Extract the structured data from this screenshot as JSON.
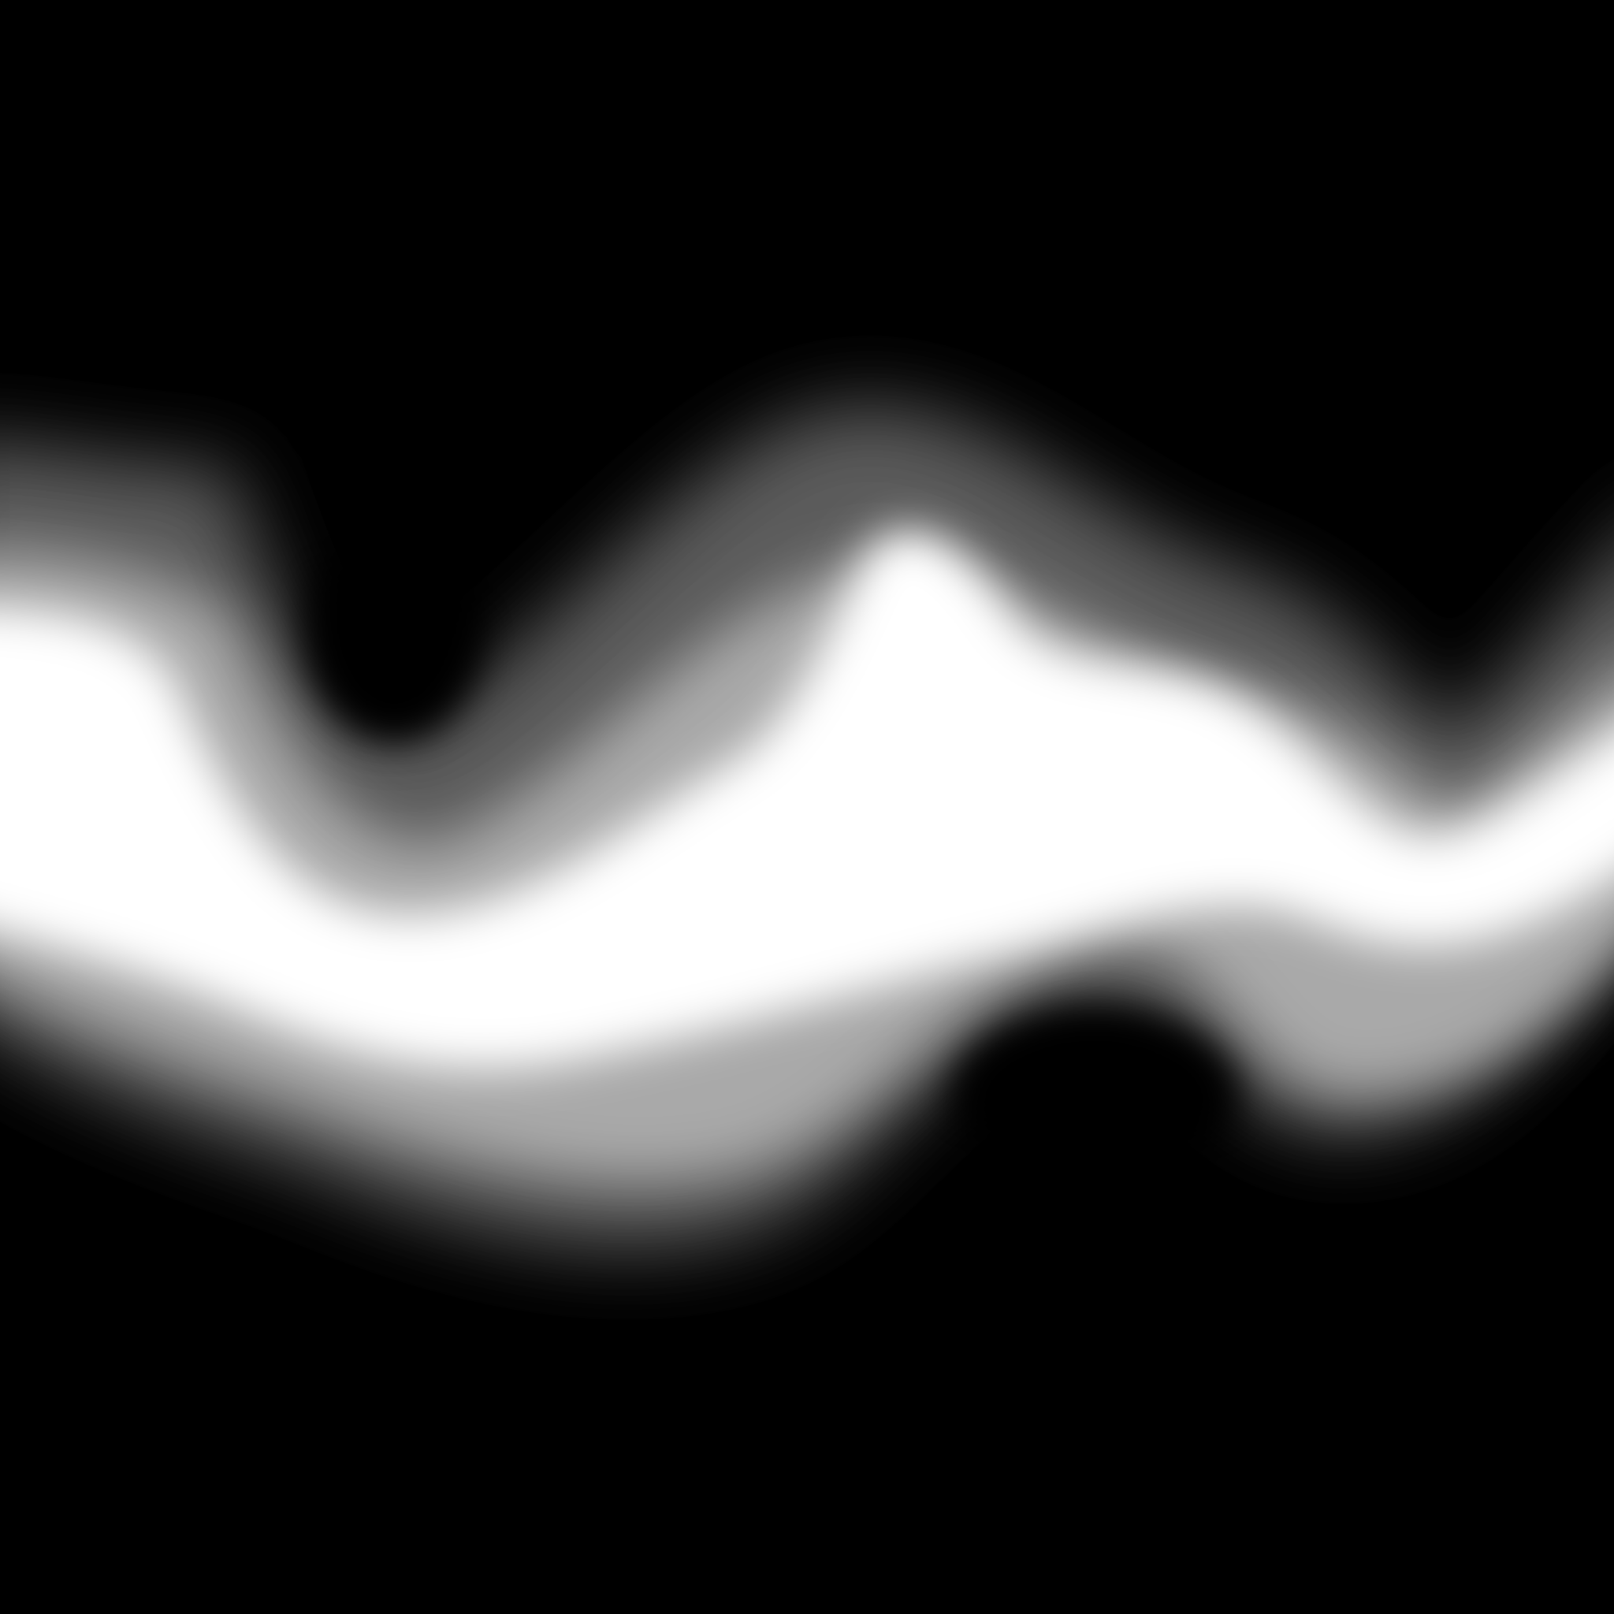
{
  "scene": {
    "subject": "wave-band",
    "colors": {
      "background": "#000000",
      "core": "#ffffff",
      "mid": "#a9a9a9",
      "halo": "#5c5c5c"
    }
  }
}
